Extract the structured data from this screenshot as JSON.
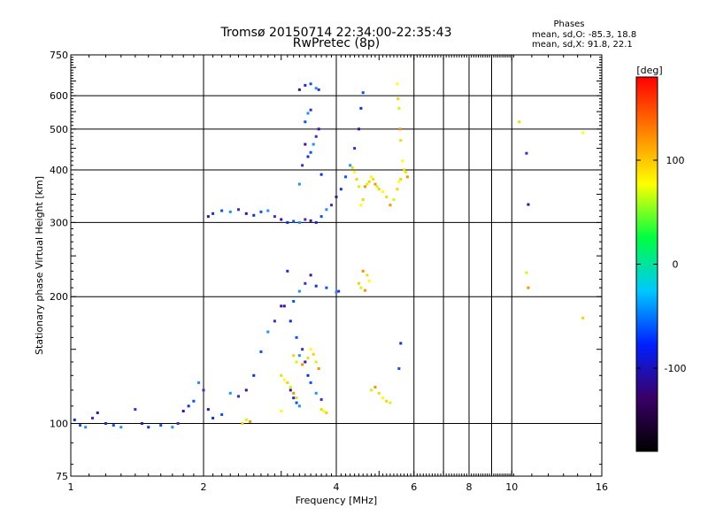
{
  "chart_data": {
    "type": "scatter",
    "title": "Tromsø 20150714 22:34:00-22:35:43",
    "subtitle": "RwPretec (8p)",
    "xlabel": "Frequency [MHz]",
    "ylabel": "Stationary phase Virtual Height [km]",
    "xscale": "log",
    "yscale": "log",
    "xlim": [
      1,
      16
    ],
    "ylim": [
      75,
      750
    ],
    "xticks": [
      1,
      2,
      4,
      6,
      8,
      10,
      16
    ],
    "yticks": [
      75,
      100,
      200,
      300,
      400,
      500,
      600,
      750
    ],
    "grid": true,
    "stats": {
      "heading": "Phases",
      "line1": "mean, sd,O: -85.3, 18.8",
      "line2": "mean, sd,X:  91.8, 22.1"
    },
    "colorbar": {
      "label": "[deg]",
      "range": [
        -180,
        180
      ],
      "ticks": [
        100,
        0,
        -100
      ],
      "colors": [
        "#000000",
        "#3a0066",
        "#0020ff",
        "#00c8ff",
        "#00ff40",
        "#ffff00",
        "#ff8000",
        "#ff0000"
      ]
    },
    "series": [
      {
        "values": [
          [
            1.02,
            102
          ],
          [
            1.05,
            99
          ],
          [
            1.08,
            98
          ],
          [
            1.12,
            103
          ],
          [
            1.15,
            106
          ],
          [
            1.2,
            100
          ],
          [
            1.25,
            99
          ],
          [
            1.3,
            98
          ],
          [
            1.4,
            108
          ],
          [
            1.45,
            100
          ],
          [
            1.5,
            98
          ],
          [
            1.6,
            99
          ],
          [
            1.7,
            98
          ],
          [
            1.75,
            100
          ],
          [
            1.8,
            107
          ],
          [
            1.85,
            110
          ],
          [
            1.9,
            113
          ],
          [
            1.95,
            125
          ],
          [
            2.0,
            120
          ],
          [
            2.05,
            108
          ],
          [
            2.1,
            103
          ],
          [
            2.2,
            105
          ],
          [
            2.3,
            118
          ],
          [
            2.4,
            116
          ],
          [
            2.5,
            120
          ],
          [
            2.6,
            130
          ],
          [
            2.7,
            148
          ],
          [
            2.8,
            165
          ],
          [
            2.9,
            175
          ],
          [
            3.0,
            190
          ],
          [
            3.1,
            230
          ],
          [
            3.2,
            195
          ],
          [
            3.3,
            206
          ],
          [
            3.4,
            215
          ],
          [
            3.5,
            225
          ],
          [
            3.6,
            212
          ],
          [
            3.8,
            210
          ],
          [
            4.0,
            205
          ],
          [
            4.05,
            206
          ],
          [
            2.05,
            310
          ],
          [
            2.1,
            315
          ],
          [
            2.2,
            320
          ],
          [
            2.3,
            318
          ],
          [
            2.4,
            322
          ],
          [
            2.5,
            315
          ],
          [
            2.6,
            312
          ],
          [
            2.7,
            318
          ],
          [
            2.8,
            320
          ],
          [
            2.9,
            310
          ],
          [
            3.0,
            305
          ],
          [
            3.1,
            300
          ],
          [
            3.2,
            302
          ],
          [
            3.3,
            300
          ],
          [
            3.4,
            305
          ],
          [
            3.5,
            303
          ],
          [
            3.6,
            300
          ],
          [
            3.7,
            310
          ],
          [
            3.8,
            322
          ],
          [
            3.9,
            330
          ],
          [
            4.0,
            345
          ],
          [
            4.1,
            360
          ],
          [
            4.2,
            385
          ],
          [
            4.3,
            410
          ],
          [
            4.4,
            450
          ],
          [
            4.5,
            500
          ],
          [
            4.55,
            560
          ],
          [
            4.6,
            610
          ],
          [
            3.3,
            370
          ],
          [
            3.35,
            410
          ],
          [
            3.4,
            460
          ],
          [
            3.45,
            430
          ],
          [
            3.5,
            440
          ],
          [
            3.55,
            460
          ],
          [
            3.6,
            480
          ],
          [
            3.65,
            500
          ],
          [
            3.7,
            390
          ],
          [
            3.4,
            520
          ],
          [
            3.45,
            545
          ],
          [
            3.5,
            555
          ],
          [
            3.3,
            620
          ],
          [
            3.4,
            635
          ],
          [
            3.5,
            640
          ],
          [
            3.6,
            625
          ],
          [
            3.65,
            620
          ],
          [
            3.05,
            190
          ],
          [
            3.15,
            175
          ],
          [
            3.25,
            160
          ],
          [
            3.3,
            145
          ],
          [
            3.35,
            150
          ],
          [
            3.4,
            140
          ],
          [
            3.45,
            130
          ],
          [
            3.5,
            125
          ],
          [
            3.6,
            118
          ],
          [
            3.7,
            114
          ],
          [
            3.15,
            120
          ],
          [
            3.2,
            115
          ],
          [
            3.25,
            112
          ],
          [
            3.3,
            110
          ],
          [
            10.8,
            438
          ],
          [
            10.9,
            331
          ],
          [
            5.6,
            155
          ],
          [
            5.55,
            135
          ]
        ],
        "note": "O"
      },
      {
        "values": [
          [
            5.5,
            640
          ],
          [
            5.52,
            590
          ],
          [
            5.55,
            560
          ],
          [
            5.58,
            500
          ],
          [
            5.6,
            470
          ],
          [
            5.65,
            420
          ],
          [
            5.7,
            400
          ],
          [
            5.75,
            395
          ],
          [
            5.8,
            385
          ],
          [
            5.6,
            380
          ],
          [
            5.55,
            375
          ],
          [
            5.5,
            360
          ],
          [
            5.4,
            340
          ],
          [
            5.3,
            330
          ],
          [
            5.2,
            345
          ],
          [
            5.1,
            355
          ],
          [
            5.0,
            360
          ],
          [
            4.95,
            365
          ],
          [
            4.9,
            370
          ],
          [
            4.85,
            380
          ],
          [
            4.8,
            385
          ],
          [
            4.75,
            375
          ],
          [
            4.7,
            370
          ],
          [
            4.65,
            365
          ],
          [
            4.6,
            340
          ],
          [
            4.55,
            330
          ],
          [
            3.2,
            145
          ],
          [
            3.25,
            140
          ],
          [
            3.35,
            138
          ],
          [
            3.45,
            143
          ],
          [
            3.5,
            150
          ],
          [
            3.55,
            146
          ],
          [
            3.6,
            140
          ],
          [
            3.65,
            135
          ],
          [
            3.0,
            130
          ],
          [
            3.05,
            127
          ],
          [
            3.1,
            125
          ],
          [
            3.15,
            122
          ],
          [
            3.2,
            118
          ],
          [
            3.25,
            115
          ],
          [
            3.0,
            107
          ],
          [
            2.45,
            100
          ],
          [
            2.5,
            102
          ],
          [
            2.55,
            101
          ],
          [
            3.7,
            108
          ],
          [
            3.75,
            107
          ],
          [
            3.8,
            106
          ],
          [
            4.8,
            120
          ],
          [
            4.9,
            122
          ],
          [
            5.0,
            118
          ],
          [
            5.1,
            115
          ],
          [
            5.2,
            113
          ],
          [
            5.3,
            112
          ],
          [
            4.6,
            230
          ],
          [
            4.7,
            225
          ],
          [
            4.75,
            218
          ],
          [
            4.5,
            215
          ],
          [
            4.55,
            210
          ],
          [
            4.65,
            207
          ],
          [
            10.4,
            520
          ],
          [
            14.5,
            490
          ],
          [
            14.5,
            178
          ],
          [
            10.8,
            228
          ],
          [
            10.9,
            210
          ],
          [
            4.35,
            405
          ],
          [
            4.4,
            395
          ],
          [
            4.45,
            380
          ],
          [
            4.5,
            365
          ]
        ],
        "note": "X"
      }
    ]
  }
}
